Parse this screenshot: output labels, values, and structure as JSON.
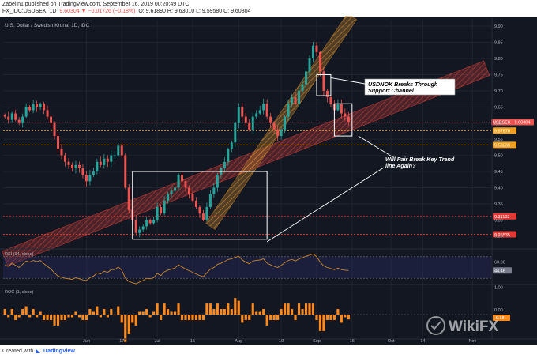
{
  "header": {
    "line1": "Zabelin1 published on TradingView.com, September 16, 2019 00:20:49 UTC",
    "symbol": "FX_IDC:USDSEK, 1D",
    "change": "9.60304 ▼ −0.01726 (−0.18%)",
    "ohlc": "O: 9.61890  H: 9.63010  L: 9.59580  C: 9.60304"
  },
  "footer": {
    "created_with": "Created with",
    "brand": "TradingView"
  },
  "watermark": {
    "text": "WikiFX"
  },
  "colors": {
    "background": "#131722",
    "up": "#26a69a",
    "down": "#ef5350",
    "grid": "#20242f",
    "text": "#b2b5be",
    "orange_channel": "#c8862c",
    "red_channel": "#e0413a",
    "level_orange": "#f0a020",
    "level_red": "#e53935",
    "rsi_line": "#c8862c",
    "roc_bar": "#ff8a1d"
  },
  "chart_data": [
    {
      "type": "candlestick",
      "title": "U.S. Dollar / Swedish Krona, 1D, IDC",
      "symbol_label": "USDSEK",
      "x": [
        "May 1",
        "May 2",
        "May 3",
        "May 6",
        "May 7",
        "May 8",
        "May 9",
        "May 10",
        "May 13",
        "May 14",
        "May 15",
        "May 16",
        "May 17",
        "May 20",
        "May 21",
        "May 22",
        "May 23",
        "May 24",
        "May 27",
        "May 28",
        "May 29",
        "May 30",
        "May 31",
        "Jun 3",
        "Jun 4",
        "Jun 5",
        "Jun 6",
        "Jun 7",
        "Jun 10",
        "Jun 11",
        "Jun 12",
        "Jun 13",
        "Jun 14",
        "Jun 17",
        "Jun 18",
        "Jun 19",
        "Jun 20",
        "Jun 21",
        "Jun 24",
        "Jun 25",
        "Jun 26",
        "Jun 27",
        "Jun 28",
        "Jul 1",
        "Jul 2",
        "Jul 3",
        "Jul 4",
        "Jul 5",
        "Jul 8",
        "Jul 9",
        "Jul 10",
        "Jul 11",
        "Jul 12",
        "Jul 15",
        "Jul 16",
        "Jul 17",
        "Jul 18",
        "Jul 19",
        "Jul 22",
        "Jul 23",
        "Jul 24",
        "Jul 25",
        "Jul 26",
        "Jul 29",
        "Jul 30",
        "Jul 31",
        "Aug 1",
        "Aug 2",
        "Aug 5",
        "Aug 6",
        "Aug 7",
        "Aug 8",
        "Aug 9",
        "Aug 12",
        "Aug 13",
        "Aug 14",
        "Aug 15",
        "Aug 16",
        "Aug 19",
        "Aug 20",
        "Aug 21",
        "Aug 22",
        "Aug 23",
        "Aug 26",
        "Aug 27",
        "Aug 28",
        "Aug 29",
        "Aug 30",
        "Sep 2",
        "Sep 3",
        "Sep 4",
        "Sep 5",
        "Sep 6",
        "Sep 9",
        "Sep 10",
        "Sep 11",
        "Sep 12",
        "Sep 13"
      ],
      "close": [
        9.62,
        9.61,
        9.63,
        9.61,
        9.6,
        9.62,
        9.65,
        9.64,
        9.66,
        9.65,
        9.66,
        9.64,
        9.62,
        9.6,
        9.56,
        9.52,
        9.5,
        9.48,
        9.47,
        9.46,
        9.47,
        9.46,
        9.44,
        9.42,
        9.44,
        9.45,
        9.48,
        9.47,
        9.49,
        9.48,
        9.5,
        9.5,
        9.53,
        9.5,
        9.4,
        9.33,
        9.3,
        9.26,
        9.27,
        9.28,
        9.3,
        9.29,
        9.3,
        9.34,
        9.32,
        9.36,
        9.38,
        9.39,
        9.4,
        9.44,
        9.42,
        9.4,
        9.38,
        9.36,
        9.34,
        9.32,
        9.3,
        9.34,
        9.38,
        9.4,
        9.44,
        9.46,
        9.48,
        9.52,
        9.54,
        9.6,
        9.65,
        9.62,
        9.6,
        9.58,
        9.62,
        9.63,
        9.64,
        9.66,
        9.62,
        9.6,
        9.58,
        9.56,
        9.58,
        9.62,
        9.66,
        9.68,
        9.66,
        9.7,
        9.72,
        9.76,
        9.8,
        9.84,
        9.82,
        9.76,
        9.7,
        9.68,
        9.66,
        9.64,
        9.66,
        9.63,
        9.62,
        9.603
      ],
      "price_axis": [
        9.9,
        9.85,
        9.8,
        9.75,
        9.7,
        9.65,
        9.6,
        9.55,
        9.5,
        9.45,
        9.4,
        9.35,
        9.3,
        9.25
      ],
      "ylim": [
        9.22,
        9.92
      ],
      "x_tick_labels": [
        "Jun",
        "17",
        "Jul",
        "15",
        "Aug",
        "19",
        "Sep",
        "16",
        "Oct",
        "14",
        "Nov"
      ],
      "x_tick_dates": [
        "Jun 3",
        "Jun 17",
        "Jul 1",
        "Jul 15",
        "Aug 1",
        "Aug 19",
        "Sep 2",
        "Sep 16",
        "Oct 1",
        "Oct 14",
        "Nov 1"
      ],
      "levels": [
        {
          "value": 9.5767,
          "label": "9.57670",
          "kind": "orange"
        },
        {
          "value": 9.53236,
          "label": "9.53236",
          "kind": "orange"
        },
        {
          "value": 9.31102,
          "label": "9.31102",
          "kind": "red"
        },
        {
          "value": 9.25535,
          "label": "9.25535",
          "kind": "red"
        }
      ],
      "last_price": {
        "value": 9.60304,
        "label": "USDSEK · 9.60304"
      },
      "orange_channel": {
        "start_date": "Jul 22",
        "start_value": 9.28,
        "end_date": "Sep 16",
        "end_value": 9.93
      },
      "red_channel": {
        "start_date": "May 1",
        "start_value": 9.18,
        "end_date": "Nov 7",
        "end_value": 9.77
      },
      "annotations": [
        {
          "text": "USDNOK Breaks Through Support Channel"
        },
        {
          "text": "Will Pair Break Key Trend line Again?"
        }
      ],
      "boxes": [
        {
          "from": "Jun 20",
          "to": "Aug 13",
          "top": 9.45,
          "bottom": 9.24
        },
        {
          "from": "Sep 2",
          "to": "Sep 6",
          "top": 9.75,
          "bottom": 9.685
        },
        {
          "from": "Sep 9",
          "to": "Sep 16",
          "top": 9.66,
          "bottom": 9.56
        }
      ]
    },
    {
      "type": "line",
      "title": "RSI (14, close)",
      "current_label": "44.46",
      "axis_labels": [
        "60.00"
      ],
      "values": [
        55,
        52,
        58,
        54,
        50,
        56,
        62,
        60,
        63,
        61,
        63,
        57,
        52,
        47,
        40,
        34,
        32,
        30,
        29,
        28,
        31,
        29,
        27,
        26,
        31,
        34,
        40,
        38,
        43,
        41,
        46,
        46,
        51,
        45,
        30,
        24,
        22,
        20,
        23,
        26,
        30,
        29,
        31,
        39,
        35,
        42,
        45,
        47,
        49,
        55,
        51,
        47,
        44,
        41,
        38,
        35,
        33,
        40,
        47,
        50,
        56,
        58,
        61,
        65,
        66,
        69,
        71,
        64,
        60,
        57,
        62,
        63,
        64,
        66,
        58,
        55,
        52,
        50,
        54,
        59,
        63,
        65,
        62,
        66,
        68,
        71,
        73,
        75,
        70,
        60,
        53,
        50,
        48,
        46,
        49,
        46,
        45,
        44.46
      ]
    },
    {
      "type": "bar",
      "title": "ROC (1, close)",
      "current_label": "-0.18",
      "axis_labels": [
        "1.00",
        "0.00"
      ],
      "values": [
        0.2,
        -0.1,
        0.2,
        -0.2,
        -0.1,
        0.2,
        0.3,
        -0.1,
        0.2,
        -0.1,
        0.1,
        -0.2,
        -0.2,
        -0.2,
        -0.4,
        -0.4,
        -0.2,
        -0.2,
        -0.1,
        -0.1,
        0.1,
        -0.1,
        -0.2,
        -0.2,
        0.2,
        0.1,
        0.3,
        -0.1,
        0.2,
        -0.1,
        0.2,
        0.0,
        0.3,
        -0.3,
        -1.0,
        -0.7,
        -0.3,
        -0.4,
        0.1,
        0.1,
        0.2,
        -0.1,
        0.1,
        0.4,
        -0.2,
        0.4,
        0.2,
        0.1,
        0.1,
        0.4,
        -0.2,
        -0.2,
        -0.2,
        -0.2,
        -0.2,
        -0.2,
        -0.2,
        0.4,
        0.4,
        0.2,
        0.4,
        0.2,
        0.2,
        0.4,
        0.2,
        0.6,
        0.5,
        -0.3,
        -0.2,
        -0.2,
        0.4,
        0.1,
        0.1,
        0.2,
        -0.4,
        -0.2,
        -0.2,
        -0.2,
        0.2,
        0.4,
        0.4,
        0.2,
        -0.2,
        0.4,
        0.2,
        0.4,
        0.4,
        0.4,
        -0.2,
        -0.6,
        -0.6,
        -0.2,
        -0.2,
        -0.2,
        0.2,
        -0.3,
        -0.1,
        -0.18
      ]
    }
  ]
}
